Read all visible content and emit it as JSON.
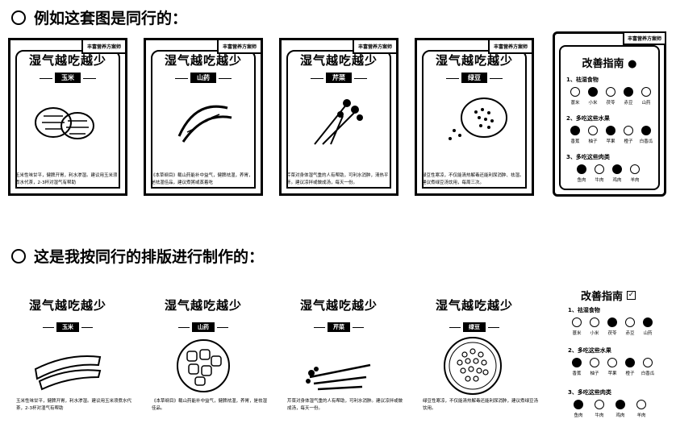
{
  "heading1": "例如这套图是同行的：",
  "heading2": "这是我按同行的排版进行制作的：",
  "card_tag": "丰富营养方案师",
  "card_title": "湿气越吃越少",
  "cards": [
    {
      "label": "玉米",
      "desc": "玉米性味甘平，健脾开胃，利水渗湿。建议用玉米须煮水代茶，2-3杯对湿气有帮助"
    },
    {
      "label": "山药",
      "desc": "《本草纲目》载山药能补中益气，健脾祛湿，养胃，是祛湿佳品，建议煮粥或蒸着吃"
    },
    {
      "label": "芹菜",
      "desc": "芹菜对身体湿气重的人有帮助，可利水消肿，清热平肝。建议凉拌或做成汤，每天一份。"
    },
    {
      "label": "绿豆",
      "desc": "绿豆性寒凉，不仅能清热解毒还能利尿消肿、祛湿。建议煮绿豆汤饮用，每周三次。"
    }
  ],
  "guide": {
    "tag": "丰富营养方案师",
    "title": "改善指南",
    "sections": [
      {
        "title": "1、祛湿食物",
        "items": [
          "薏米",
          "小米",
          "茯苓",
          "赤豆",
          "山药"
        ]
      },
      {
        "title": "2、多吃这些水果",
        "items": [
          "香蕉",
          "柚子",
          "苹果",
          "橙子",
          "白香瓜"
        ]
      },
      {
        "title": "3、多吃这些肉类",
        "items": [
          "鱼肉",
          "牛肉",
          "鸡肉",
          "羊肉"
        ]
      }
    ]
  },
  "mine": {
    "title": "湿气越吃越少",
    "cards": [
      {
        "label": "玉米",
        "desc": "玉米性味甘平，健脾开胃，利水渗湿。建议用玉米须煮水代茶，2-3杯对湿气有帮助"
      },
      {
        "label": "山药",
        "desc": "《本草纲目》载山药能补中益气，健脾祛湿，养胃，是祛湿佳品。"
      },
      {
        "label": "芹菜",
        "desc": "芹菜对身体湿气重的人有帮助，可利水消肿。建议凉拌或做成汤，每天一份。"
      },
      {
        "label": "绿豆",
        "desc": "绿豆性寒凉，不仅能清热解毒还能利尿消肿，建议煮绿豆汤饮用。"
      }
    ],
    "guide_title": "改善指南",
    "guide_sections": [
      {
        "title": "1、祛湿食物",
        "items": [
          "薏米",
          "小米",
          "茯苓",
          "赤豆",
          "山药"
        ]
      },
      {
        "title": "2、多吃这些水果",
        "items": [
          "香蕉",
          "柚子",
          "苹果",
          "橙子",
          "白香瓜"
        ]
      },
      {
        "title": "3、多吃这些肉类",
        "items": [
          "鱼肉",
          "牛肉",
          "鸡肉",
          "羊肉"
        ]
      }
    ]
  }
}
